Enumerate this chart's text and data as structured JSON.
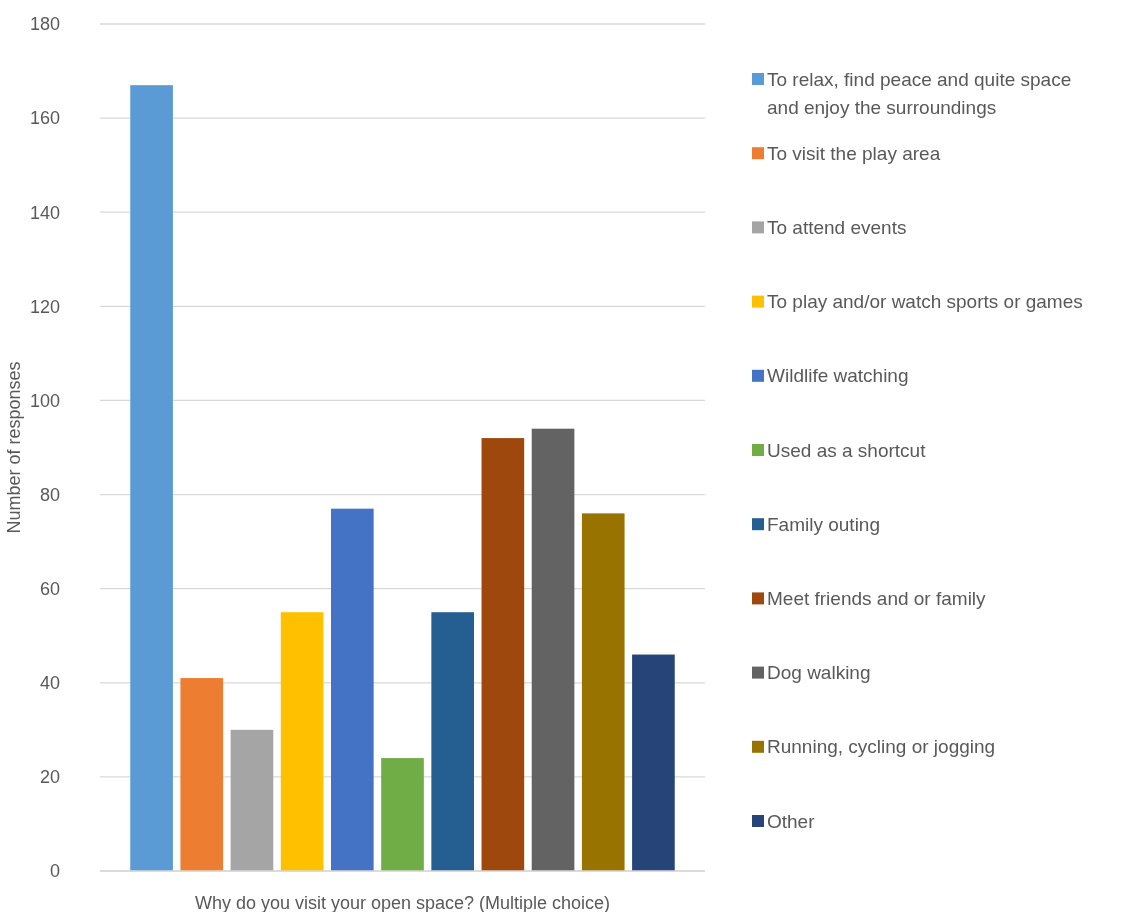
{
  "chart_data": {
    "type": "bar",
    "xlabel": "Why do you visit your open space? (Multiple choice)",
    "ylabel": "Number of responses",
    "categories": [
      null
    ],
    "series": [
      {
        "name": "To relax, find peace and quite space and enjoy the surroundings",
        "color": "#5b9bd5",
        "values": [
          167
        ]
      },
      {
        "name": "To visit the play area",
        "color": "#ed7d31",
        "values": [
          41
        ]
      },
      {
        "name": "To attend events",
        "color": "#a5a5a5",
        "values": [
          30
        ]
      },
      {
        "name": "To play and/or watch sports or games",
        "color": "#ffc000",
        "values": [
          55
        ]
      },
      {
        "name": "Wildlife watching",
        "color": "#4472c4",
        "values": [
          77
        ]
      },
      {
        "name": "Used as a shortcut",
        "color": "#70ad47",
        "values": [
          24
        ]
      },
      {
        "name": "Family outing",
        "color": "#255e91",
        "values": [
          55
        ]
      },
      {
        "name": "Meet friends and or family",
        "color": "#9e480e",
        "values": [
          92
        ]
      },
      {
        "name": "Dog walking",
        "color": "#636363",
        "values": [
          94
        ]
      },
      {
        "name": "Running, cycling or jogging",
        "color": "#997300",
        "values": [
          76
        ]
      },
      {
        "name": "Other",
        "color": "#264478",
        "values": [
          46
        ]
      }
    ],
    "ylim": [
      0,
      180
    ],
    "yticks": [
      0,
      20,
      40,
      60,
      80,
      100,
      120,
      140,
      160,
      180
    ],
    "grid": "y",
    "legend": "right"
  }
}
